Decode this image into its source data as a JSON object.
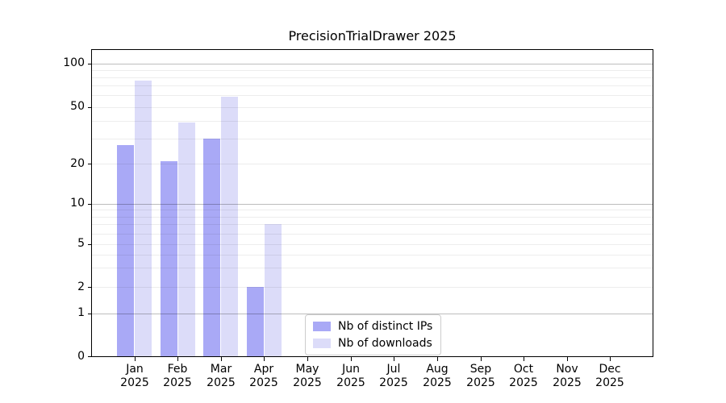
{
  "title": "PrecisionTrialDrawer 2025",
  "colors": {
    "distinct_ips": "#a9a9f6",
    "downloads": "#dcdcf9",
    "axis": "#000000",
    "legend_border": "#cccccc"
  },
  "x_axis": {
    "months": [
      "Jan",
      "Feb",
      "Mar",
      "Apr",
      "May",
      "Jun",
      "Jul",
      "Aug",
      "Sep",
      "Oct",
      "Nov",
      "Dec"
    ],
    "year": "2025"
  },
  "y_axis": {
    "tick_labels": [
      "0",
      "1",
      "2",
      "5",
      "10",
      "20",
      "50",
      "100"
    ],
    "tick_values": [
      0,
      1,
      2,
      5,
      10,
      20,
      50,
      100
    ]
  },
  "chart_data": {
    "type": "bar",
    "title": "PrecisionTrialDrawer 2025",
    "categories": [
      "Jan 2025",
      "Feb 2025",
      "Mar 2025",
      "Apr 2025",
      "May 2025",
      "Jun 2025",
      "Jul 2025",
      "Aug 2025",
      "Sep 2025",
      "Oct 2025",
      "Nov 2025",
      "Dec 2025"
    ],
    "series": [
      {
        "name": "Nb of distinct IPs",
        "color": "#a9a9f6",
        "values": [
          27,
          21,
          30,
          2,
          0,
          0,
          0,
          0,
          0,
          0,
          0,
          0
        ]
      },
      {
        "name": "Nb of downloads",
        "color": "#dcdcf9",
        "values": [
          76,
          39,
          59,
          7,
          0,
          0,
          0,
          0,
          0,
          0,
          0,
          0
        ]
      }
    ],
    "y_scale": "log-like",
    "y_ticks": [
      0,
      1,
      2,
      5,
      10,
      20,
      50,
      100
    ],
    "ylim": [
      0,
      120
    ],
    "grid": "horizontal",
    "major_grid_values": [
      1,
      10,
      100
    ],
    "minor_grid_values": [
      2,
      3,
      4,
      5,
      6,
      7,
      8,
      9,
      20,
      30,
      40,
      50,
      60,
      70,
      80,
      90
    ],
    "legend_position": "inside-bottom-center",
    "grid_above_bars": true
  }
}
